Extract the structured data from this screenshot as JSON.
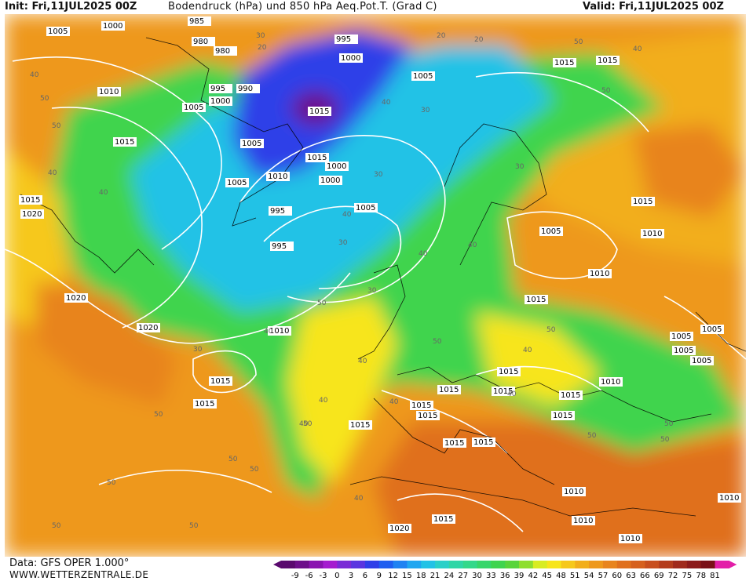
{
  "header": {
    "init": "Init: Fri,11JUL2025 00Z",
    "title": "Bodendruck (hPa) und 850 hPa Aeq.Pot.T. (Grad C)",
    "valid": "Valid: Fri,11JUL2025 00Z"
  },
  "footer": {
    "source": "Data: GFS OPER 1.000°",
    "website": "WWW.WETTERZENTRALE.DE"
  },
  "legend": {
    "ticks": [
      "-9",
      "-6",
      "-3",
      "0",
      "3",
      "6",
      "9",
      "12",
      "15",
      "18",
      "21",
      "24",
      "27",
      "30",
      "33",
      "36",
      "39",
      "42",
      "45",
      "48",
      "51",
      "54",
      "57",
      "60",
      "63",
      "66",
      "69",
      "72",
      "75",
      "78",
      "81"
    ],
    "colors": [
      "#5a0a6e",
      "#6d0f8a",
      "#8a14b0",
      "#a51ccf",
      "#7a2bd6",
      "#5a35e0",
      "#2f3fe8",
      "#1f5ef0",
      "#1f82f2",
      "#20a6f0",
      "#22c2e6",
      "#2ad0c8",
      "#2fd6a6",
      "#33d88a",
      "#37d66a",
      "#3fd44e",
      "#58d43a",
      "#8ede2e",
      "#d8ec22",
      "#f7e51a",
      "#f6c81a",
      "#f2ae1a",
      "#ee981c",
      "#e8841e",
      "#e0701e",
      "#d6601e",
      "#c84e1e",
      "#b43c1c",
      "#a02a1c",
      "#8c1a1a",
      "#7a1018",
      "#e31fa8"
    ]
  },
  "map_regions": [
    {
      "name": "warm-air-atlantic",
      "color": "#ee981c"
    },
    {
      "name": "low-greenland",
      "color": "#2f3fe8"
    },
    {
      "name": "cool-air-north-atlantic",
      "color": "#22c2e6"
    },
    {
      "name": "mild-air-europe",
      "color": "#3fd44e"
    },
    {
      "name": "hot-air-africa",
      "color": "#e0701e"
    },
    {
      "name": "warm-air-russia",
      "color": "#f2ae1a"
    }
  ],
  "pressure_labels": [
    "1005",
    "1000",
    "985",
    "980",
    "980",
    "995",
    "990",
    "1000",
    "1010",
    "1005",
    "1015",
    "1005",
    "1015",
    "995",
    "1000",
    "1015",
    "995",
    "1010",
    "1005",
    "1015",
    "1000",
    "1005",
    "1000",
    "995",
    "1005",
    "1015",
    "1015",
    "1015",
    "1005",
    "1010",
    "1020",
    "1020",
    "1010",
    "1010",
    "1015",
    "1015",
    "1015",
    "1015",
    "1015",
    "1015",
    "1015",
    "1015",
    "1020",
    "1015",
    "1015",
    "1015",
    "1015",
    "1010",
    "1010",
    "1005",
    "1005",
    "1005",
    "1005",
    "1015",
    "1010",
    "1010",
    "1010",
    "1015",
    "1020"
  ],
  "theta_labels": [
    "40",
    "50",
    "30",
    "20",
    "20",
    "40",
    "30",
    "40",
    "50",
    "40",
    "50",
    "40",
    "30",
    "20",
    "30",
    "30",
    "40",
    "50",
    "50",
    "40",
    "30",
    "40",
    "40",
    "50",
    "40",
    "50",
    "50",
    "40",
    "50",
    "50",
    "40",
    "50",
    "40",
    "50",
    "50",
    "50",
    "50",
    "50",
    "40",
    "30",
    "40",
    "50",
    "40"
  ]
}
